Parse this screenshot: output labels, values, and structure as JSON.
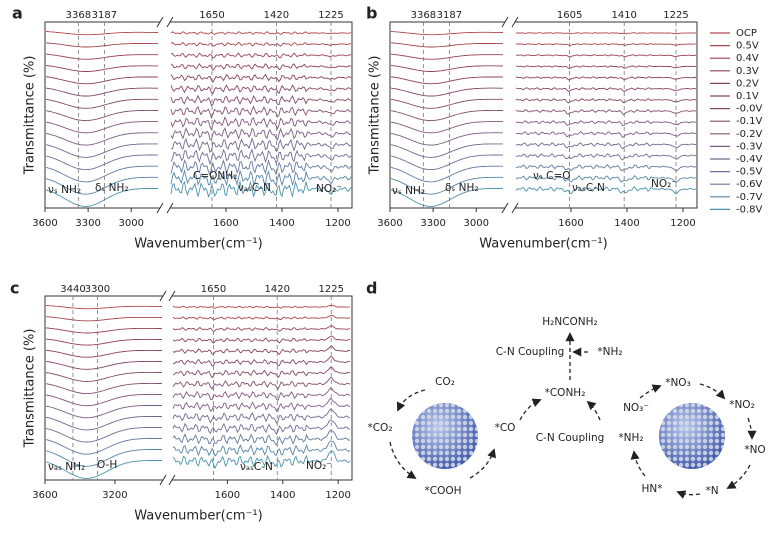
{
  "panels": [
    {
      "letter": "a",
      "y_label": "Transmittance (%)",
      "x_label": "Wavenumber(cm⁻¹)",
      "left_xlim": [
        3600,
        2800
      ],
      "right_xlim": [
        1800,
        1150
      ],
      "left_xticks": [
        3600,
        3300,
        3000
      ],
      "right_xticks": [
        1600,
        1400,
        1200
      ],
      "peaks": [
        3368,
        3187,
        1650,
        1420,
        1225
      ],
      "annotations": [
        "νₛ NH₂",
        "δₛ NH₂",
        "C=ONH₂",
        "νₐₛC-N",
        "NO₂⁻"
      ]
    },
    {
      "letter": "b",
      "y_label": "Transmittance (%)",
      "x_label": "Wavenumber(cm⁻¹)",
      "left_xlim": [
        3600,
        2800
      ],
      "right_xlim": [
        1800,
        1150
      ],
      "left_xticks": [
        3600,
        3300,
        3000
      ],
      "right_xticks": [
        1600,
        1400,
        1200
      ],
      "peaks": [
        3368,
        3187,
        1605,
        1410,
        1225
      ],
      "annotations": [
        "νₛ NH₂",
        "δₛ NH₂",
        "νₛ C=O",
        "νₐₛC-N",
        "NO₂⁻"
      ]
    },
    {
      "letter": "c",
      "y_label": "Transmittance (%)",
      "x_label": "Wavenumber(cm⁻¹)",
      "left_xlim": [
        3600,
        2925
      ],
      "right_xlim": [
        1800,
        1150
      ],
      "left_xticks": [
        3600,
        3200
      ],
      "right_xticks": [
        1600,
        1400,
        1200
      ],
      "peaks": [
        3440,
        3300,
        1650,
        1420,
        1225
      ],
      "annotations": [
        "νₐₛ NH₂",
        "O-H",
        "νₐₛC-N",
        "NO₂⁻"
      ]
    }
  ],
  "legend": [
    {
      "name": "OCP",
      "color": "#b5484d"
    },
    {
      "name": "0.5V",
      "color": "#a8454f"
    },
    {
      "name": "0.4V",
      "color": "#9c4352"
    },
    {
      "name": "0.3V",
      "color": "#924256"
    },
    {
      "name": "0.2V",
      "color": "#8b425c"
    },
    {
      "name": "0.1V",
      "color": "#874663"
    },
    {
      "name": "-0.0V",
      "color": "#85496b"
    },
    {
      "name": "-0.1V",
      "color": "#845073"
    },
    {
      "name": "-0.2V",
      "color": "#82577c"
    },
    {
      "name": "-0.3V",
      "color": "#7d5e86"
    },
    {
      "name": "-0.4V",
      "color": "#76668f"
    },
    {
      "name": "-0.5V",
      "color": "#6e6f97"
    },
    {
      "name": "-0.6V",
      "color": "#63799f"
    },
    {
      "name": "-0.7V",
      "color": "#5786a7"
    },
    {
      "name": "-0.8V",
      "color": "#4a94ae"
    }
  ],
  "diagram": {
    "letter": "d",
    "labels": [
      "H₂NCONH₂",
      "C-N Coupling",
      "*NH₂",
      "CO₂",
      "*CO₂",
      "*CO",
      "*COOH",
      "*CONH₂",
      "C-N Coupling",
      "*NH₂",
      "*NO₃",
      "NO₃⁻",
      "*NO₂",
      "*NO",
      "*N",
      "HN*"
    ]
  }
}
